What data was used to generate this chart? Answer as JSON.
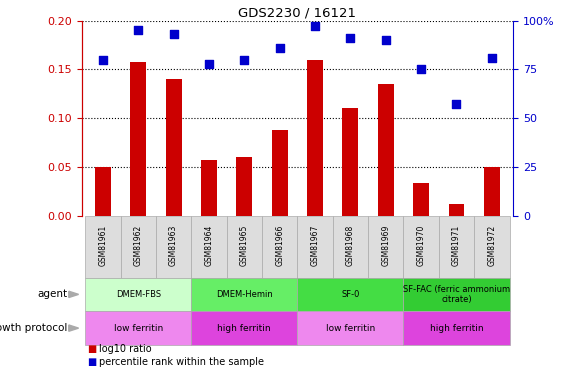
{
  "title": "GDS2230 / 16121",
  "samples": [
    "GSM81961",
    "GSM81962",
    "GSM81963",
    "GSM81964",
    "GSM81965",
    "GSM81966",
    "GSM81967",
    "GSM81968",
    "GSM81969",
    "GSM81970",
    "GSM81971",
    "GSM81972"
  ],
  "log10_ratio": [
    0.05,
    0.158,
    0.14,
    0.057,
    0.06,
    0.088,
    0.16,
    0.11,
    0.135,
    0.033,
    0.012,
    0.05
  ],
  "percentile_rank": [
    80,
    95,
    93,
    78,
    80,
    86,
    97,
    91,
    90,
    75,
    57,
    81
  ],
  "ylim_left": [
    0,
    0.2
  ],
  "ylim_right": [
    0,
    100
  ],
  "yticks_left": [
    0,
    0.05,
    0.1,
    0.15,
    0.2
  ],
  "yticks_right": [
    0,
    25,
    50,
    75,
    100
  ],
  "bar_color": "#cc0000",
  "dot_color": "#0000cc",
  "agent_groups": [
    {
      "label": "DMEM-FBS",
      "start": 0,
      "end": 3,
      "color": "#ccffcc"
    },
    {
      "label": "DMEM-Hemin",
      "start": 3,
      "end": 6,
      "color": "#66ee66"
    },
    {
      "label": "SF-0",
      "start": 6,
      "end": 9,
      "color": "#44dd44"
    },
    {
      "label": "SF-FAC (ferric ammonium\ncitrate)",
      "start": 9,
      "end": 12,
      "color": "#33cc33"
    }
  ],
  "protocol_groups": [
    {
      "label": "low ferritin",
      "start": 0,
      "end": 3,
      "color": "#ee88ee"
    },
    {
      "label": "high ferritin",
      "start": 3,
      "end": 6,
      "color": "#dd44dd"
    },
    {
      "label": "low ferritin",
      "start": 6,
      "end": 9,
      "color": "#ee88ee"
    },
    {
      "label": "high ferritin",
      "start": 9,
      "end": 12,
      "color": "#dd44dd"
    }
  ],
  "left_axis_color": "#cc0000",
  "right_axis_color": "#0000cc",
  "sample_cell_color": "#dddddd",
  "bar_width": 0.45,
  "dot_size": 28
}
